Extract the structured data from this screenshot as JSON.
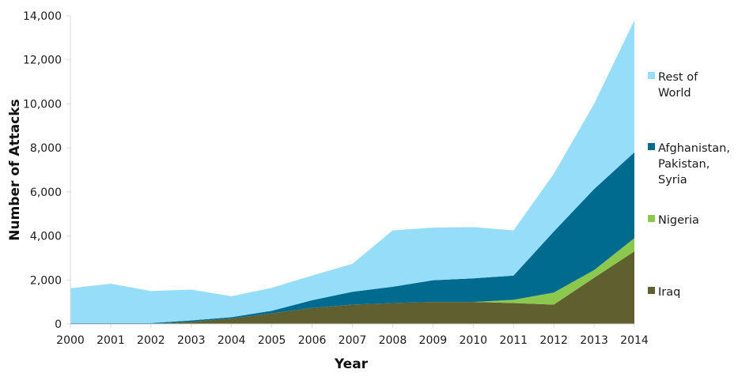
{
  "chart_data": {
    "type": "area",
    "stacked": true,
    "xlabel": "Year",
    "ylabel": "Number of Attacks",
    "ylim": [
      0,
      14000
    ],
    "yticks": [
      0,
      2000,
      4000,
      6000,
      8000,
      10000,
      12000,
      14000
    ],
    "ytick_labels": [
      "0",
      "2,000",
      "4,000",
      "6,000",
      "8,000",
      "10,000",
      "12,000",
      "14,000"
    ],
    "x": [
      "2000",
      "2001",
      "2002",
      "2003",
      "2004",
      "2005",
      "2006",
      "2007",
      "2008",
      "2009",
      "2010",
      "2011",
      "2012",
      "2013",
      "2014"
    ],
    "series": [
      {
        "name": "Iraq",
        "color": "#5f5f30",
        "values": [
          0,
          0,
          0,
          100,
          250,
          480,
          730,
          880,
          950,
          1000,
          1000,
          950,
          880,
          2100,
          3300
        ]
      },
      {
        "name": "Nigeria",
        "color": "#8dc84e",
        "values": [
          0,
          0,
          0,
          0,
          0,
          0,
          0,
          0,
          0,
          0,
          0,
          150,
          550,
          350,
          600
        ]
      },
      {
        "name": "Afghanistan, Pakistan, Syria",
        "color": "#006b8f",
        "values": [
          40,
          40,
          40,
          60,
          60,
          120,
          350,
          580,
          740,
          990,
          1070,
          1100,
          2770,
          3680,
          3900
        ]
      },
      {
        "name": "Rest of World",
        "color": "#95ddf8",
        "values": [
          1580,
          1790,
          1460,
          1400,
          950,
          1040,
          1120,
          1270,
          2560,
          2390,
          2330,
          2050,
          2620,
          3870,
          6000
        ]
      }
    ],
    "legend_order": [
      "Rest of World",
      "Afghanistan, Pakistan, Syria",
      "Nigeria",
      "Iraq"
    ],
    "legend_labels": {
      "Rest of World": [
        "Rest of",
        "World"
      ],
      "Afghanistan, Pakistan, Syria": [
        "Afghanistan,",
        "Pakistan,",
        "Syria"
      ],
      "Nigeria": [
        "Nigeria"
      ],
      "Iraq": [
        "Iraq"
      ]
    },
    "legend_position": "right",
    "grid": false
  }
}
